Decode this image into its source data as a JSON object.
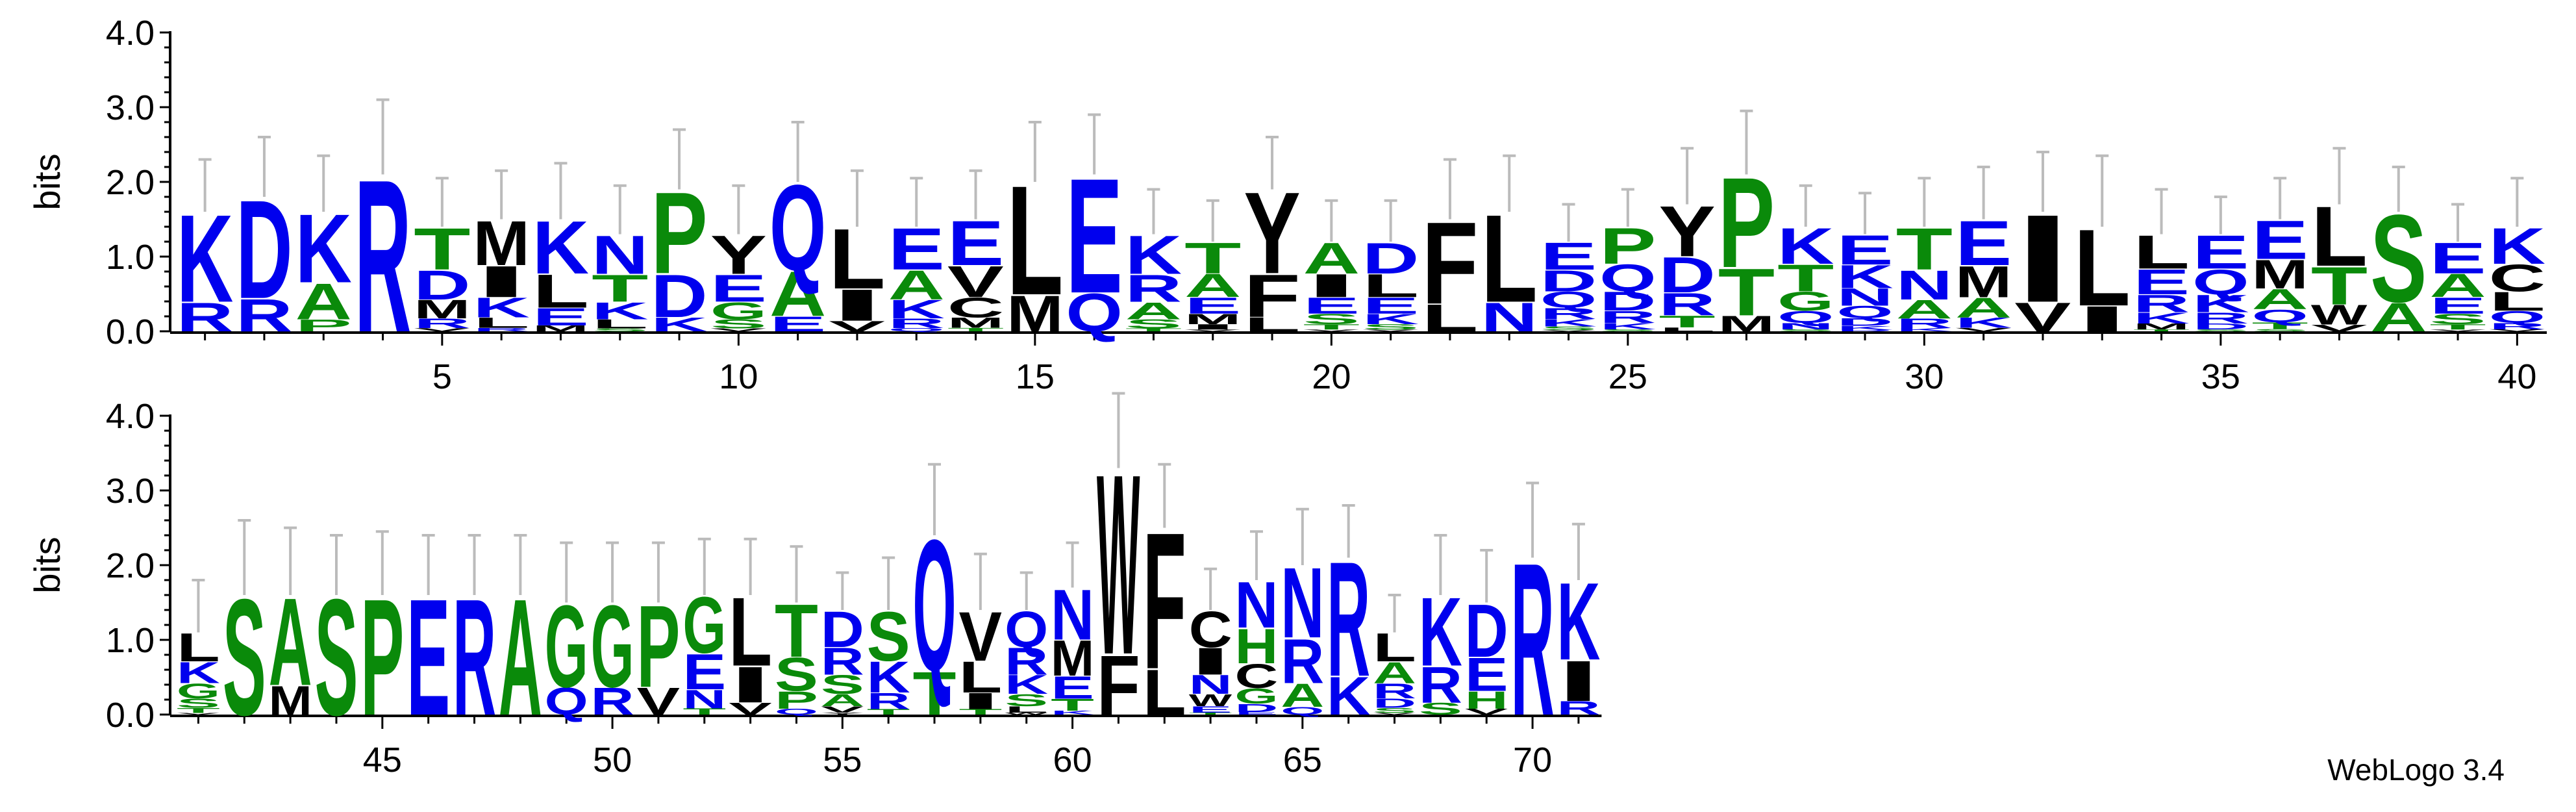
{
  "chart_data": {
    "type": "sequence-logo",
    "ylabel": "bits",
    "ylim": [
      0,
      4.0
    ],
    "y_ticks": [
      "0.0",
      "1.0",
      "2.0",
      "3.0",
      "4.0"
    ],
    "x_ticks_row1": [
      5,
      10,
      15,
      20,
      25,
      30,
      35,
      40
    ],
    "x_ticks_row2": [
      45,
      50,
      55,
      60,
      65,
      70
    ],
    "rows": [
      {
        "first_position": 1,
        "last_position": 40
      },
      {
        "first_position": 41,
        "last_position": 71
      }
    ],
    "colors": {
      "blue": "#0000ee",
      "green": "#0a8a0a",
      "black": "#000000",
      "error_bar": "#bbbbbb"
    },
    "residue_colors": {
      "A": "green",
      "C": "black",
      "D": "blue",
      "E": "blue",
      "F": "black",
      "G": "green",
      "H": "green",
      "I": "black",
      "K": "blue",
      "L": "black",
      "M": "black",
      "N": "blue",
      "P": "green",
      "Q": "blue",
      "R": "blue",
      "S": "green",
      "T": "green",
      "V": "black",
      "W": "black",
      "Y": "black"
    },
    "positions": [
      {
        "pos": 1,
        "total": 1.6,
        "err": 0.7,
        "stack": [
          "R",
          "K"
        ]
      },
      {
        "pos": 2,
        "total": 1.8,
        "err": 0.8,
        "stack": [
          "R",
          "D"
        ]
      },
      {
        "pos": 3,
        "total": 1.6,
        "err": 0.75,
        "stack": [
          "P",
          "A",
          "K"
        ]
      },
      {
        "pos": 4,
        "total": 2.1,
        "err": 1.0,
        "stack": [
          "R"
        ]
      },
      {
        "pos": 5,
        "total": 1.4,
        "err": 0.65,
        "stack": [
          "V",
          "R",
          "M",
          "D",
          "T"
        ]
      },
      {
        "pos": 6,
        "total": 1.5,
        "err": 0.65,
        "stack": [
          "R",
          "L",
          "K",
          "I",
          "M"
        ]
      },
      {
        "pos": 7,
        "total": 1.5,
        "err": 0.75,
        "stack": [
          "M",
          "E",
          "L",
          "K"
        ]
      },
      {
        "pos": 8,
        "total": 1.3,
        "err": 0.65,
        "stack": [
          "S",
          "L",
          "K",
          "T",
          "N"
        ]
      },
      {
        "pos": 9,
        "total": 1.9,
        "err": 0.8,
        "stack": [
          "K",
          "D",
          "P"
        ]
      },
      {
        "pos": 10,
        "total": 1.3,
        "err": 0.65,
        "stack": [
          "V",
          "S",
          "G",
          "E",
          "Y"
        ]
      },
      {
        "pos": 11,
        "total": 2.0,
        "err": 0.8,
        "stack": [
          "E",
          "A",
          "Q"
        ]
      },
      {
        "pos": 12,
        "total": 1.4,
        "err": 0.75,
        "stack": [
          "V",
          "I",
          "L"
        ]
      },
      {
        "pos": 13,
        "total": 1.4,
        "err": 0.65,
        "stack": [
          "Q",
          "R",
          "K",
          "A",
          "E"
        ]
      },
      {
        "pos": 14,
        "total": 1.5,
        "err": 0.65,
        "stack": [
          "T",
          "M",
          "C",
          "V",
          "E"
        ]
      },
      {
        "pos": 15,
        "total": 2.0,
        "err": 0.8,
        "stack": [
          "M",
          "L"
        ]
      },
      {
        "pos": 16,
        "total": 2.1,
        "err": 0.8,
        "stack": [
          "Q",
          "E"
        ]
      },
      {
        "pos": 17,
        "total": 1.3,
        "err": 0.6,
        "stack": [
          "T",
          "S",
          "A",
          "R",
          "K"
        ]
      },
      {
        "pos": 18,
        "total": 1.2,
        "err": 0.55,
        "stack": [
          "V",
          "I",
          "M",
          "E",
          "A",
          "T"
        ]
      },
      {
        "pos": 19,
        "total": 1.9,
        "err": 0.7,
        "stack": [
          "L",
          "F",
          "Y"
        ]
      },
      {
        "pos": 20,
        "total": 1.2,
        "err": 0.55,
        "stack": [
          "V",
          "T",
          "S",
          "E",
          "I",
          "A"
        ]
      },
      {
        "pos": 21,
        "total": 1.2,
        "err": 0.55,
        "stack": [
          "V",
          "S",
          "K",
          "E",
          "L",
          "D"
        ]
      },
      {
        "pos": 22,
        "total": 1.5,
        "err": 0.8,
        "stack": [
          "L",
          "F"
        ]
      },
      {
        "pos": 23,
        "total": 1.6,
        "err": 0.75,
        "stack": [
          "N",
          "L"
        ]
      },
      {
        "pos": 24,
        "total": 1.2,
        "err": 0.5,
        "stack": [
          "V",
          "S",
          "K",
          "R",
          "Q",
          "D",
          "E"
        ]
      },
      {
        "pos": 25,
        "total": 1.4,
        "err": 0.5,
        "stack": [
          "S",
          "K",
          "R",
          "D",
          "Q",
          "P"
        ]
      },
      {
        "pos": 26,
        "total": 1.7,
        "err": 0.75,
        "stack": [
          "L",
          "T",
          "R",
          "D",
          "Y"
        ]
      },
      {
        "pos": 27,
        "total": 2.1,
        "err": 0.85,
        "stack": [
          "M",
          "T",
          "P"
        ]
      },
      {
        "pos": 28,
        "total": 1.4,
        "err": 0.55,
        "stack": [
          "S",
          "N",
          "Q",
          "G",
          "T",
          "K"
        ]
      },
      {
        "pos": 29,
        "total": 1.3,
        "err": 0.55,
        "stack": [
          "R",
          "K",
          "D",
          "Q",
          "N",
          "K",
          "E"
        ]
      },
      {
        "pos": 30,
        "total": 1.4,
        "err": 0.65,
        "stack": [
          "K",
          "R",
          "A",
          "N",
          "T"
        ]
      },
      {
        "pos": 31,
        "total": 1.5,
        "err": 0.7,
        "stack": [
          "V",
          "K",
          "A",
          "M",
          "E"
        ]
      },
      {
        "pos": 32,
        "total": 1.6,
        "err": 0.8,
        "stack": [
          "V",
          "I"
        ]
      },
      {
        "pos": 33,
        "total": 1.4,
        "err": 0.95,
        "stack": [
          "I",
          "L"
        ]
      },
      {
        "pos": 34,
        "total": 1.3,
        "err": 0.6,
        "stack": [
          "T",
          "M",
          "K",
          "R",
          "E",
          "L"
        ]
      },
      {
        "pos": 35,
        "total": 1.3,
        "err": 0.5,
        "stack": [
          "S",
          "D",
          "R",
          "K",
          "Q",
          "E"
        ]
      },
      {
        "pos": 36,
        "total": 1.5,
        "err": 0.55,
        "stack": [
          "S",
          "T",
          "Q",
          "A",
          "M",
          "E"
        ]
      },
      {
        "pos": 37,
        "total": 1.7,
        "err": 0.75,
        "stack": [
          "V",
          "W",
          "T",
          "L"
        ]
      },
      {
        "pos": 38,
        "total": 1.6,
        "err": 0.6,
        "stack": [
          "A",
          "S"
        ]
      },
      {
        "pos": 39,
        "total": 1.2,
        "err": 0.5,
        "stack": [
          "V",
          "T",
          "S",
          "E",
          "A",
          "E"
        ]
      },
      {
        "pos": 40,
        "total": 1.4,
        "err": 0.65,
        "stack": [
          "V",
          "R",
          "Q",
          "L",
          "C",
          "K"
        ]
      },
      {
        "pos": 41,
        "total": 1.1,
        "err": 0.7,
        "stack": [
          "V",
          "T",
          "S",
          "G",
          "K",
          "L"
        ]
      },
      {
        "pos": 42,
        "total": 1.6,
        "err": 1.0,
        "stack": [
          "S"
        ]
      },
      {
        "pos": 43,
        "total": 1.6,
        "err": 0.9,
        "stack": [
          "M",
          "A"
        ]
      },
      {
        "pos": 44,
        "total": 1.6,
        "err": 0.8,
        "stack": [
          "S"
        ]
      },
      {
        "pos": 45,
        "total": 1.6,
        "err": 0.85,
        "stack": [
          "P"
        ]
      },
      {
        "pos": 46,
        "total": 1.6,
        "err": 0.8,
        "stack": [
          "E"
        ]
      },
      {
        "pos": 47,
        "total": 1.6,
        "err": 0.8,
        "stack": [
          "R"
        ]
      },
      {
        "pos": 48,
        "total": 1.6,
        "err": 0.8,
        "stack": [
          "A"
        ]
      },
      {
        "pos": 49,
        "total": 1.5,
        "err": 0.8,
        "stack": [
          "Q",
          "G"
        ]
      },
      {
        "pos": 50,
        "total": 1.5,
        "err": 0.8,
        "stack": [
          "R",
          "G"
        ]
      },
      {
        "pos": 51,
        "total": 1.5,
        "err": 0.8,
        "stack": [
          "V",
          "P"
        ]
      },
      {
        "pos": 52,
        "total": 1.6,
        "err": 0.75,
        "stack": [
          "T",
          "N",
          "E",
          "G"
        ]
      },
      {
        "pos": 53,
        "total": 1.6,
        "err": 0.75,
        "stack": [
          "V",
          "I",
          "L"
        ]
      },
      {
        "pos": 54,
        "total": 1.5,
        "err": 0.75,
        "stack": [
          "Q",
          "P",
          "S",
          "T"
        ]
      },
      {
        "pos": 55,
        "total": 1.4,
        "err": 0.5,
        "stack": [
          "Y",
          "V",
          "A",
          "S",
          "R",
          "D"
        ]
      },
      {
        "pos": 56,
        "total": 1.4,
        "err": 0.7,
        "stack": [
          "T",
          "R",
          "K",
          "S"
        ]
      },
      {
        "pos": 57,
        "total": 2.4,
        "err": 0.95,
        "stack": [
          "T",
          "Q"
        ]
      },
      {
        "pos": 58,
        "total": 1.4,
        "err": 0.75,
        "stack": [
          "T",
          "I",
          "L",
          "V"
        ]
      },
      {
        "pos": 59,
        "total": 1.4,
        "err": 0.5,
        "stack": [
          "W",
          "L",
          "S",
          "K",
          "R",
          "Q"
        ]
      },
      {
        "pos": 60,
        "total": 1.7,
        "err": 0.6,
        "stack": [
          "K",
          "T",
          "E",
          "M",
          "N"
        ]
      },
      {
        "pos": 61,
        "total": 3.3,
        "err": 1.0,
        "stack": [
          "F",
          "W"
        ]
      },
      {
        "pos": 62,
        "total": 2.5,
        "err": 0.85,
        "stack": [
          "L",
          "F"
        ]
      },
      {
        "pos": 63,
        "total": 1.4,
        "err": 0.55,
        "stack": [
          "T",
          "E",
          "W",
          "N",
          "I",
          "C"
        ]
      },
      {
        "pos": 64,
        "total": 1.8,
        "err": 0.65,
        "stack": [
          "E",
          "D",
          "G",
          "C",
          "H",
          "N"
        ]
      },
      {
        "pos": 65,
        "total": 2.0,
        "err": 0.75,
        "stack": [
          "Q",
          "A",
          "R",
          "N"
        ]
      },
      {
        "pos": 66,
        "total": 2.1,
        "err": 0.7,
        "stack": [
          "K",
          "R"
        ]
      },
      {
        "pos": 67,
        "total": 1.1,
        "err": 0.5,
        "stack": [
          "V",
          "S",
          "D",
          "R",
          "A",
          "L"
        ]
      },
      {
        "pos": 68,
        "total": 1.6,
        "err": 0.8,
        "stack": [
          "S",
          "R",
          "K"
        ]
      },
      {
        "pos": 69,
        "total": 1.5,
        "err": 0.7,
        "stack": [
          "V",
          "H",
          "E",
          "D"
        ]
      },
      {
        "pos": 70,
        "total": 2.1,
        "err": 1.0,
        "stack": [
          "R"
        ]
      },
      {
        "pos": 71,
        "total": 1.8,
        "err": 0.75,
        "stack": [
          "R",
          "I",
          "K"
        ]
      }
    ]
  },
  "footer": {
    "label": "WebLogo 3.4"
  }
}
